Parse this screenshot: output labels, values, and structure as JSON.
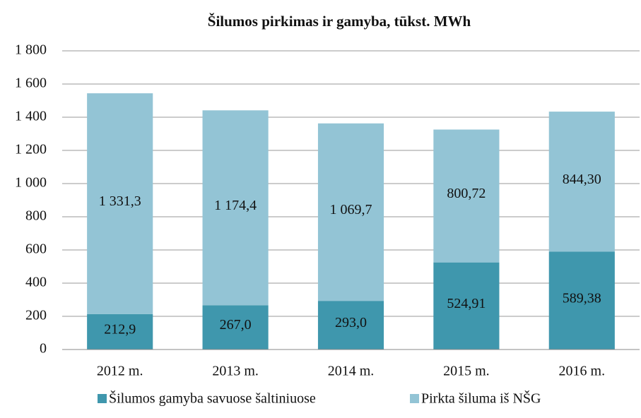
{
  "chart_data": {
    "type": "stacked_bar",
    "title": "Šilumos pirkimas ir gamyba, tūkst. MWh",
    "categories": [
      "2012 m.",
      "2013 m.",
      "2014 m.",
      "2015 m.",
      "2016 m."
    ],
    "series": [
      {
        "name": "Šilumos gamyba savuose šaltiniuose",
        "color": "#3f97ad",
        "values": [
          212.9,
          267.0,
          293.0,
          524.91,
          589.38
        ],
        "value_labels": [
          "212,9",
          "267,0",
          "293,0",
          "524,91",
          "589,38"
        ]
      },
      {
        "name": "Pirkta šiluma iš NŠG",
        "color": "#93c4d5",
        "values": [
          1331.3,
          1174.4,
          1069.7,
          800.72,
          844.3
        ],
        "value_labels": [
          "1 331,3",
          "1 174,4",
          "1 069,7",
          "800,72",
          "844,30"
        ]
      }
    ],
    "ylim": [
      0,
      1800
    ],
    "yticks": [
      0,
      200,
      400,
      600,
      800,
      {
        "value": 1000,
        "label": "1 000"
      },
      {
        "value": 1200,
        "label": "1 200"
      },
      {
        "value": 1400,
        "label": "1 400"
      },
      {
        "value": 1600,
        "label": "1 600"
      },
      {
        "value": 1800,
        "label": "1 800"
      }
    ],
    "grid": true,
    "legend": "bottom"
  }
}
